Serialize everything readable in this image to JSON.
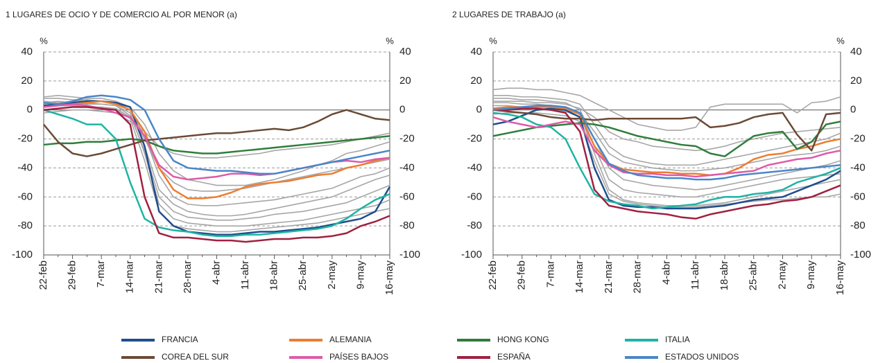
{
  "chart_data": [
    {
      "type": "line",
      "title": "1  LUGARES DE OCIO Y DE COMERCIO AL POR MENOR (a)",
      "ylabel": "%",
      "y2label": "%",
      "categories": [
        "22-feb",
        null,
        "29-feb",
        null,
        "7-mar",
        null,
        "14-mar",
        null,
        "21-mar",
        null,
        "28-mar",
        null,
        "4-abr",
        null,
        "11-abr",
        null,
        "18-abr",
        null,
        "25-abr",
        null,
        "2-may",
        null,
        "9-may",
        null,
        "16-may"
      ],
      "ylim": [
        -100,
        40
      ],
      "yticks": [
        -100,
        -80,
        -60,
        -40,
        -20,
        0,
        20,
        40
      ],
      "y2lim": [
        -100,
        40
      ],
      "y2ticks": [
        -100,
        -80,
        -60,
        -40,
        -20,
        0,
        20,
        40
      ],
      "grid": true,
      "series": [
        {
          "color": "#a6a6a6",
          "values": [
            8,
            8,
            7,
            7,
            6,
            4,
            0,
            -25,
            -55,
            -65,
            -70,
            -72,
            -73,
            -73,
            -72,
            -70,
            -68,
            -66,
            -64,
            -62,
            -60,
            -56,
            -52,
            -48,
            -45
          ]
        },
        {
          "color": "#a6a6a6",
          "values": [
            5,
            6,
            5,
            5,
            4,
            3,
            -2,
            -30,
            -65,
            -75,
            -78,
            -79,
            -80,
            -80,
            -80,
            -79,
            -78,
            -77,
            -76,
            -74,
            -72,
            -70,
            -68,
            -66,
            -62
          ]
        },
        {
          "color": "#a6a6a6",
          "values": [
            2,
            3,
            3,
            2,
            2,
            1,
            -5,
            -20,
            -40,
            -50,
            -55,
            -56,
            -56,
            -55,
            -54,
            -52,
            -50,
            -48,
            -46,
            -44,
            -42,
            -40,
            -38,
            -36,
            -34
          ]
        },
        {
          "color": "#a6a6a6",
          "values": [
            -2,
            -1,
            0,
            0,
            -1,
            -2,
            -8,
            -15,
            -25,
            -30,
            -32,
            -33,
            -33,
            -32,
            -31,
            -30,
            -28,
            -27,
            -26,
            -25,
            -24,
            -22,
            -20,
            -18,
            -16
          ]
        },
        {
          "color": "#a6a6a6",
          "values": [
            0,
            1,
            2,
            2,
            1,
            0,
            -6,
            -35,
            -70,
            -80,
            -82,
            -83,
            -84,
            -84,
            -83,
            -82,
            -81,
            -80,
            -79,
            -78,
            -76,
            -74,
            -72,
            -70,
            -68
          ]
        },
        {
          "color": "#a6a6a6",
          "values": [
            4,
            5,
            6,
            7,
            6,
            5,
            0,
            -18,
            -45,
            -60,
            -65,
            -66,
            -66,
            -65,
            -64,
            -63,
            -62,
            -60,
            -58,
            -56,
            -54,
            -50,
            -46,
            -44,
            -40
          ]
        },
        {
          "color": "#a6a6a6",
          "values": [
            6,
            5,
            5,
            4,
            4,
            3,
            -4,
            -28,
            -60,
            -70,
            -74,
            -75,
            -76,
            -76,
            -75,
            -74,
            -72,
            -71,
            -70,
            -68,
            -66,
            -64,
            -60,
            -56,
            -52
          ]
        },
        {
          "color": "#a6a6a6",
          "values": [
            9,
            10,
            9,
            8,
            8,
            6,
            2,
            -10,
            -30,
            -42,
            -48,
            -50,
            -52,
            -52,
            -52,
            -50,
            -48,
            -45,
            -42,
            -38,
            -35,
            -30,
            -28,
            -25,
            -22
          ]
        },
        {
          "name": "FRANCIA",
          "color": "#1f4e8c",
          "values": [
            3,
            4,
            5,
            6,
            6,
            5,
            2,
            -25,
            -70,
            -80,
            -84,
            -85,
            -86,
            -86,
            -85,
            -84,
            -84,
            -83,
            -82,
            -81,
            -79,
            -77,
            -75,
            -70,
            -53
          ]
        },
        {
          "name": "ALEMANIA",
          "color": "#ed7d31",
          "values": [
            2,
            3,
            4,
            5,
            6,
            4,
            0,
            -15,
            -40,
            -55,
            -61,
            -61,
            -60,
            -57,
            -53,
            -51,
            -50,
            -49,
            -47,
            -45,
            -44,
            -40,
            -38,
            -35,
            -33
          ]
        },
        {
          "name": "HONG KONG",
          "color": "#2e7d3a",
          "values": [
            -24,
            -23,
            -23,
            -22,
            -22,
            -21,
            -20,
            -21,
            -25,
            -28,
            -29,
            -30,
            -30,
            -29,
            -28,
            -27,
            -26,
            -25,
            -24,
            -23,
            -22,
            -21,
            -20,
            -19,
            -18
          ]
        },
        {
          "name": "ITALIA",
          "color": "#1fb3a4",
          "values": [
            0,
            -3,
            -6,
            -10,
            -10,
            -20,
            -50,
            -75,
            -81,
            -83,
            -84,
            -86,
            -87,
            -87,
            -86,
            -86,
            -85,
            -84,
            -83,
            -82,
            -80,
            -75,
            -68,
            -62,
            -58
          ]
        },
        {
          "name": "COREA DEL SUR",
          "color": "#6b4a35",
          "values": [
            -10,
            -22,
            -30,
            -32,
            -30,
            -27,
            -24,
            -21,
            -20,
            -19,
            -18,
            -17,
            -16,
            -16,
            -15,
            -14,
            -13,
            -14,
            -12,
            -8,
            -3,
            0,
            -3,
            -6,
            -7
          ]
        },
        {
          "name": "PAÍSES BAJOS",
          "color": "#de5aa8",
          "values": [
            2,
            3,
            4,
            3,
            1,
            -2,
            -5,
            -18,
            -38,
            -46,
            -48,
            -47,
            -46,
            -44,
            -44,
            -45,
            -44,
            -42,
            -40,
            -38,
            -36,
            -35,
            -36,
            -34,
            -33
          ]
        },
        {
          "name": "ESPAÑA",
          "color": "#9e2140",
          "values": [
            0,
            1,
            2,
            2,
            1,
            0,
            -10,
            -60,
            -85,
            -88,
            -88,
            -89,
            -90,
            -90,
            -91,
            -90,
            -89,
            -89,
            -88,
            -88,
            -87,
            -85,
            -80,
            -77,
            -73
          ]
        },
        {
          "name": "ESTADOS UNIDOS",
          "color": "#4a86c8",
          "values": [
            5,
            4,
            6,
            9,
            10,
            9,
            7,
            0,
            -20,
            -35,
            -40,
            -41,
            -42,
            -42,
            -43,
            -44,
            -44,
            -42,
            -40,
            -38,
            -36,
            -34,
            -32,
            -30,
            -28
          ]
        }
      ]
    },
    {
      "type": "line",
      "title": "2  LUGARES DE TRABAJO (a)",
      "ylabel": "%",
      "y2label": "%",
      "categories": [
        "22-feb",
        null,
        "29-feb",
        null,
        "7-mar",
        null,
        "14-mar",
        null,
        "21-mar",
        null,
        "28-mar",
        null,
        "4-abr",
        null,
        "11-abr",
        null,
        "18-abr",
        null,
        "25-abr",
        null,
        "2-may",
        null,
        "9-may",
        null,
        "16-may"
      ],
      "ylim": [
        -100,
        40
      ],
      "yticks": [
        -100,
        -80,
        -60,
        -40,
        -20,
        0,
        20,
        40
      ],
      "y2lim": [
        -100,
        40
      ],
      "y2ticks": [
        -100,
        -80,
        -60,
        -40,
        -20,
        0,
        20,
        40
      ],
      "grid": true,
      "series": [
        {
          "color": "#a6a6a6",
          "values": [
            14,
            15,
            15,
            14,
            14,
            12,
            10,
            5,
            0,
            -5,
            -10,
            -12,
            -14,
            -14,
            -12,
            2,
            4,
            4,
            4,
            4,
            4,
            -2,
            5,
            6,
            9
          ]
        },
        {
          "color": "#a6a6a6",
          "values": [
            8,
            8,
            7,
            7,
            6,
            5,
            0,
            -20,
            -40,
            -48,
            -50,
            -52,
            -53,
            -54,
            -55,
            -54,
            -52,
            -50,
            -48,
            -46,
            -44,
            -42,
            -40,
            -38,
            -35
          ]
        },
        {
          "color": "#a6a6a6",
          "values": [
            5,
            5,
            4,
            4,
            3,
            2,
            -3,
            -30,
            -55,
            -62,
            -64,
            -65,
            -66,
            -66,
            -66,
            -65,
            -64,
            -62,
            -60,
            -58,
            -56,
            -54,
            -52,
            -50,
            -48
          ]
        },
        {
          "color": "#a6a6a6",
          "values": [
            3,
            3,
            2,
            2,
            2,
            1,
            -2,
            -15,
            -30,
            -36,
            -38,
            -40,
            -41,
            -42,
            -42,
            -41,
            -40,
            -38,
            -36,
            -34,
            -32,
            -31,
            -30,
            -28,
            -25
          ]
        },
        {
          "color": "#a6a6a6",
          "values": [
            -3,
            -2,
            -2,
            -2,
            -3,
            -4,
            -8,
            -35,
            -58,
            -63,
            -65,
            -66,
            -67,
            -67,
            -67,
            -66,
            -65,
            -64,
            -63,
            -62,
            -62,
            -61,
            -60,
            -60,
            -58
          ]
        },
        {
          "color": "#a6a6a6",
          "values": [
            10,
            10,
            9,
            9,
            8,
            7,
            4,
            -10,
            -25,
            -32,
            -35,
            -37,
            -38,
            -38,
            -38,
            -36,
            -34,
            -32,
            -30,
            -28,
            -26,
            -24,
            -22,
            -20,
            -16
          ]
        },
        {
          "color": "#a6a6a6",
          "values": [
            0,
            1,
            1,
            0,
            0,
            -1,
            -5,
            -25,
            -48,
            -55,
            -57,
            -58,
            -59,
            -60,
            -60,
            -58,
            -56,
            -54,
            -52,
            -50,
            -48,
            -47,
            -46,
            -45,
            -44
          ]
        },
        {
          "color": "#a6a6a6",
          "values": [
            6,
            6,
            6,
            5,
            5,
            4,
            1,
            -5,
            -15,
            -20,
            -22,
            -25,
            -26,
            -27,
            -28,
            -27,
            -25,
            -22,
            -20,
            -18,
            -16,
            -15,
            -14,
            -13,
            -12
          ]
        },
        {
          "color": "#1f4e8c",
          "values": [
            -10,
            -8,
            -4,
            0,
            1,
            0,
            -5,
            -40,
            -62,
            -66,
            -67,
            -67,
            -68,
            -68,
            -68,
            -67,
            -66,
            -64,
            -62,
            -61,
            -60,
            -56,
            -52,
            -48,
            -42
          ]
        },
        {
          "color": "#ed7d31",
          "values": [
            1,
            2,
            2,
            2,
            2,
            1,
            -3,
            -25,
            -37,
            -41,
            -42,
            -43,
            -43,
            -44,
            -44,
            -45,
            -44,
            -40,
            -34,
            -31,
            -30,
            -27,
            -25,
            -22,
            -20
          ]
        },
        {
          "color": "#2e7d3a",
          "values": [
            -18,
            -16,
            -14,
            -12,
            -11,
            -10,
            -9,
            -10,
            -12,
            -15,
            -18,
            -20,
            -22,
            -24,
            -25,
            -30,
            -32,
            -25,
            -18,
            -16,
            -15,
            -27,
            -22,
            -10,
            -8
          ]
        },
        {
          "color": "#1fb3a4",
          "values": [
            -2,
            -3,
            -5,
            -10,
            -12,
            -20,
            -40,
            -58,
            -63,
            -65,
            -66,
            -68,
            -67,
            -66,
            -65,
            -62,
            -60,
            -60,
            -58,
            -57,
            -55,
            -50,
            -47,
            -44,
            -40
          ]
        },
        {
          "color": "#6b4a35",
          "values": [
            0,
            -1,
            -2,
            -3,
            -5,
            -6,
            -6,
            -7,
            -6,
            -6,
            -6,
            -6,
            -6,
            -6,
            -5,
            -12,
            -11,
            -9,
            -5,
            -3,
            -2,
            -17,
            -28,
            -3,
            -2
          ]
        },
        {
          "color": "#de5aa8",
          "values": [
            -5,
            -8,
            -10,
            -12,
            -10,
            -8,
            -10,
            -28,
            -38,
            -43,
            -44,
            -44,
            -45,
            -45,
            -46,
            -45,
            -44,
            -43,
            -42,
            -38,
            -36,
            -34,
            -33,
            -30,
            -28
          ]
        },
        {
          "color": "#9e2140",
          "values": [
            0,
            0,
            1,
            1,
            0,
            -2,
            -15,
            -55,
            -66,
            -68,
            -70,
            -71,
            -72,
            -74,
            -75,
            -72,
            -70,
            -68,
            -66,
            -65,
            -63,
            -62,
            -60,
            -56,
            -52
          ]
        },
        {
          "color": "#4a86c8",
          "values": [
            0,
            1,
            2,
            3,
            3,
            2,
            -2,
            -20,
            -37,
            -42,
            -45,
            -46,
            -47,
            -47,
            -48,
            -48,
            -47,
            -45,
            -44,
            -43,
            -42,
            -41,
            -40,
            -39,
            -38
          ]
        }
      ]
    }
  ]
}
